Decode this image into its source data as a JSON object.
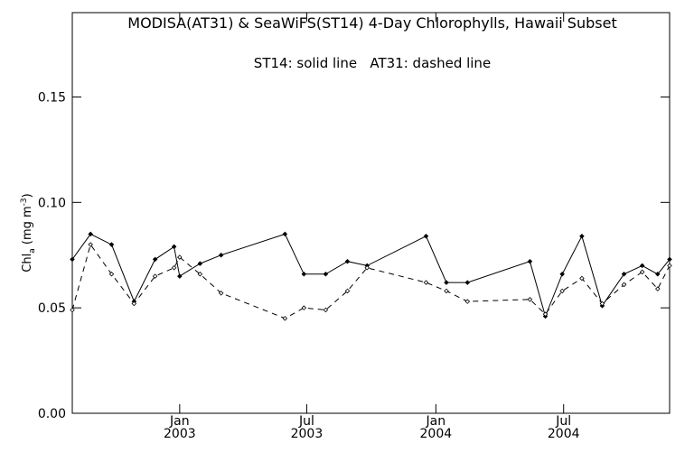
{
  "chart_data": {
    "type": "line",
    "title": "MODISA(AT31) & SeaWiFS(ST14) 4-Day Chlorophylls, Hawaii Subset",
    "annotation": "ST14: solid line   AT31: dashed line",
    "ylabel": "Chl",
    "ylabel_sub": "a",
    "ylabel_units_prefix": " (mg m",
    "ylabel_units_sup": "-3",
    "ylabel_units_suffix": ")",
    "xlabel": "",
    "ylim": [
      0.0,
      0.19
    ],
    "xlim": [
      "2002-08-01",
      "2004-11-29"
    ],
    "yticks": [
      {
        "value": 0.0,
        "label": "0.00"
      },
      {
        "value": 0.05,
        "label": "0.05"
      },
      {
        "value": 0.1,
        "label": "0.10"
      },
      {
        "value": 0.15,
        "label": "0.15"
      }
    ],
    "xticks": [
      {
        "date": "2003-01-01",
        "month": "Jan",
        "year": "2003"
      },
      {
        "date": "2003-07-01",
        "month": "Jul",
        "year": "2003"
      },
      {
        "date": "2004-01-01",
        "month": "Jan",
        "year": "2004"
      },
      {
        "date": "2004-07-01",
        "month": "Jul",
        "year": "2004"
      }
    ],
    "grid": false,
    "series": [
      {
        "name": "ST14",
        "style": "solid",
        "color": "#000000",
        "points": [
          {
            "x": "2002-08-01",
            "y": 0.073
          },
          {
            "x": "2002-08-27",
            "y": 0.085
          },
          {
            "x": "2002-09-26",
            "y": 0.08
          },
          {
            "x": "2002-10-28",
            "y": 0.053
          },
          {
            "x": "2002-11-27",
            "y": 0.073
          },
          {
            "x": "2002-12-24",
            "y": 0.079
          },
          {
            "x": "2003-01-01",
            "y": 0.065
          },
          {
            "x": "2003-01-30",
            "y": 0.071
          },
          {
            "x": "2003-03-01",
            "y": 0.075
          },
          {
            "x": "2003-05-31",
            "y": 0.085
          },
          {
            "x": "2003-06-27",
            "y": 0.066
          },
          {
            "x": "2003-07-28",
            "y": 0.066
          },
          {
            "x": "2003-08-28",
            "y": 0.072
          },
          {
            "x": "2003-09-25",
            "y": 0.07
          },
          {
            "x": "2003-12-18",
            "y": 0.084
          },
          {
            "x": "2004-01-16",
            "y": 0.062
          },
          {
            "x": "2004-02-15",
            "y": 0.062
          },
          {
            "x": "2004-05-14",
            "y": 0.072
          },
          {
            "x": "2004-06-05",
            "y": 0.046
          },
          {
            "x": "2004-06-29",
            "y": 0.066
          },
          {
            "x": "2004-07-27",
            "y": 0.084
          },
          {
            "x": "2004-08-25",
            "y": 0.051
          },
          {
            "x": "2004-09-25",
            "y": 0.066
          },
          {
            "x": "2004-10-21",
            "y": 0.07
          },
          {
            "x": "2004-11-12",
            "y": 0.066
          },
          {
            "x": "2004-11-29",
            "y": 0.073
          }
        ]
      },
      {
        "name": "AT31",
        "style": "dashed",
        "color": "#000000",
        "points": [
          {
            "x": "2002-08-01",
            "y": 0.049
          },
          {
            "x": "2002-08-27",
            "y": 0.08
          },
          {
            "x": "2002-09-26",
            "y": 0.066
          },
          {
            "x": "2002-10-28",
            "y": 0.052
          },
          {
            "x": "2002-11-27",
            "y": 0.065
          },
          {
            "x": "2002-12-24",
            "y": 0.069
          },
          {
            "x": "2003-01-01",
            "y": 0.074
          },
          {
            "x": "2003-01-30",
            "y": 0.066
          },
          {
            "x": "2003-03-01",
            "y": 0.057
          },
          {
            "x": "2003-05-31",
            "y": 0.045
          },
          {
            "x": "2003-06-27",
            "y": 0.05
          },
          {
            "x": "2003-07-28",
            "y": 0.049
          },
          {
            "x": "2003-08-28",
            "y": 0.058
          },
          {
            "x": "2003-09-25",
            "y": 0.069
          },
          {
            "x": "2003-12-18",
            "y": 0.062
          },
          {
            "x": "2004-01-16",
            "y": 0.058
          },
          {
            "x": "2004-02-15",
            "y": 0.053
          },
          {
            "x": "2004-05-14",
            "y": 0.054
          },
          {
            "x": "2004-06-05",
            "y": 0.047
          },
          {
            "x": "2004-06-29",
            "y": 0.058
          },
          {
            "x": "2004-07-27",
            "y": 0.064
          },
          {
            "x": "2004-08-25",
            "y": 0.052
          },
          {
            "x": "2004-09-25",
            "y": 0.061
          },
          {
            "x": "2004-10-21",
            "y": 0.067
          },
          {
            "x": "2004-11-12",
            "y": 0.059
          },
          {
            "x": "2004-11-29",
            "y": 0.07
          }
        ]
      }
    ]
  }
}
